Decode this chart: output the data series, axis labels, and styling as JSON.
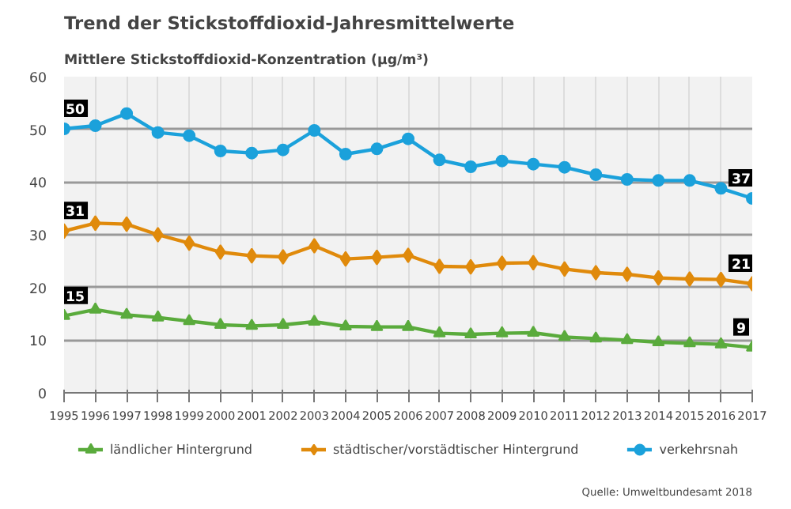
{
  "chart_data": {
    "type": "line",
    "title": "Trend der Stickstoffdioxid-Jahresmittelwerte",
    "ylabel": "Mittlere Stickstoffdioxid-Konzentration (µg/m³)",
    "x": [
      1995,
      1996,
      1997,
      1998,
      1999,
      2000,
      2001,
      2002,
      2003,
      2004,
      2005,
      2006,
      2007,
      2008,
      2009,
      2010,
      2011,
      2012,
      2013,
      2014,
      2015,
      2016,
      2017
    ],
    "series": [
      {
        "name": "ländlicher Hintergrund",
        "color": "#5aab3c",
        "marker": "triangle",
        "values": [
          14.6,
          15.8,
          14.8,
          14.3,
          13.6,
          12.9,
          12.7,
          12.9,
          13.5,
          12.6,
          12.5,
          12.5,
          11.3,
          11.1,
          11.3,
          11.4,
          10.6,
          10.3,
          10.0,
          9.6,
          9.4,
          9.2,
          8.6
        ],
        "value_labels": [
          "15",
          null,
          null,
          null,
          null,
          null,
          null,
          null,
          null,
          null,
          null,
          null,
          null,
          null,
          null,
          null,
          null,
          null,
          null,
          null,
          null,
          null,
          "9"
        ]
      },
      {
        "name": "städtischer/vorstädtischer Hintergrund",
        "color": "#e08a0b",
        "marker": "diamond",
        "values": [
          30.7,
          32.2,
          32.0,
          30.0,
          28.4,
          26.7,
          26.0,
          25.8,
          27.9,
          25.4,
          25.7,
          26.1,
          24.0,
          23.9,
          24.6,
          24.7,
          23.5,
          22.8,
          22.5,
          21.8,
          21.6,
          21.5,
          20.7
        ],
        "value_labels": [
          "31",
          null,
          null,
          null,
          null,
          null,
          null,
          null,
          null,
          null,
          null,
          null,
          null,
          null,
          null,
          null,
          null,
          null,
          null,
          null,
          null,
          null,
          "21"
        ]
      },
      {
        "name": "verkehrsnah",
        "color": "#1ba1db",
        "marker": "circle",
        "values": [
          50.1,
          50.7,
          53.0,
          49.4,
          48.8,
          45.9,
          45.5,
          46.1,
          49.8,
          45.3,
          46.3,
          48.2,
          44.2,
          42.9,
          44.0,
          43.4,
          42.8,
          41.4,
          40.5,
          40.3,
          40.3,
          38.8,
          36.9
        ],
        "value_labels": [
          "50",
          null,
          null,
          null,
          null,
          null,
          null,
          null,
          null,
          null,
          null,
          null,
          null,
          null,
          null,
          null,
          null,
          null,
          null,
          null,
          null,
          null,
          "37"
        ]
      }
    ],
    "xlim": [
      1995,
      2017
    ],
    "xticks": [
      1995,
      1996,
      1997,
      1998,
      1999,
      2000,
      2001,
      2002,
      2003,
      2004,
      2005,
      2006,
      2007,
      2008,
      2009,
      2010,
      2011,
      2012,
      2013,
      2014,
      2015,
      2016,
      2017
    ],
    "ylim": [
      0,
      60
    ],
    "yticks": [
      0,
      10,
      20,
      30,
      40,
      50,
      60
    ],
    "grid": true,
    "legend": "bottom",
    "line_style": "solid",
    "annotations": [
      "Quelle: Umweltbundesamt 2018"
    ]
  }
}
